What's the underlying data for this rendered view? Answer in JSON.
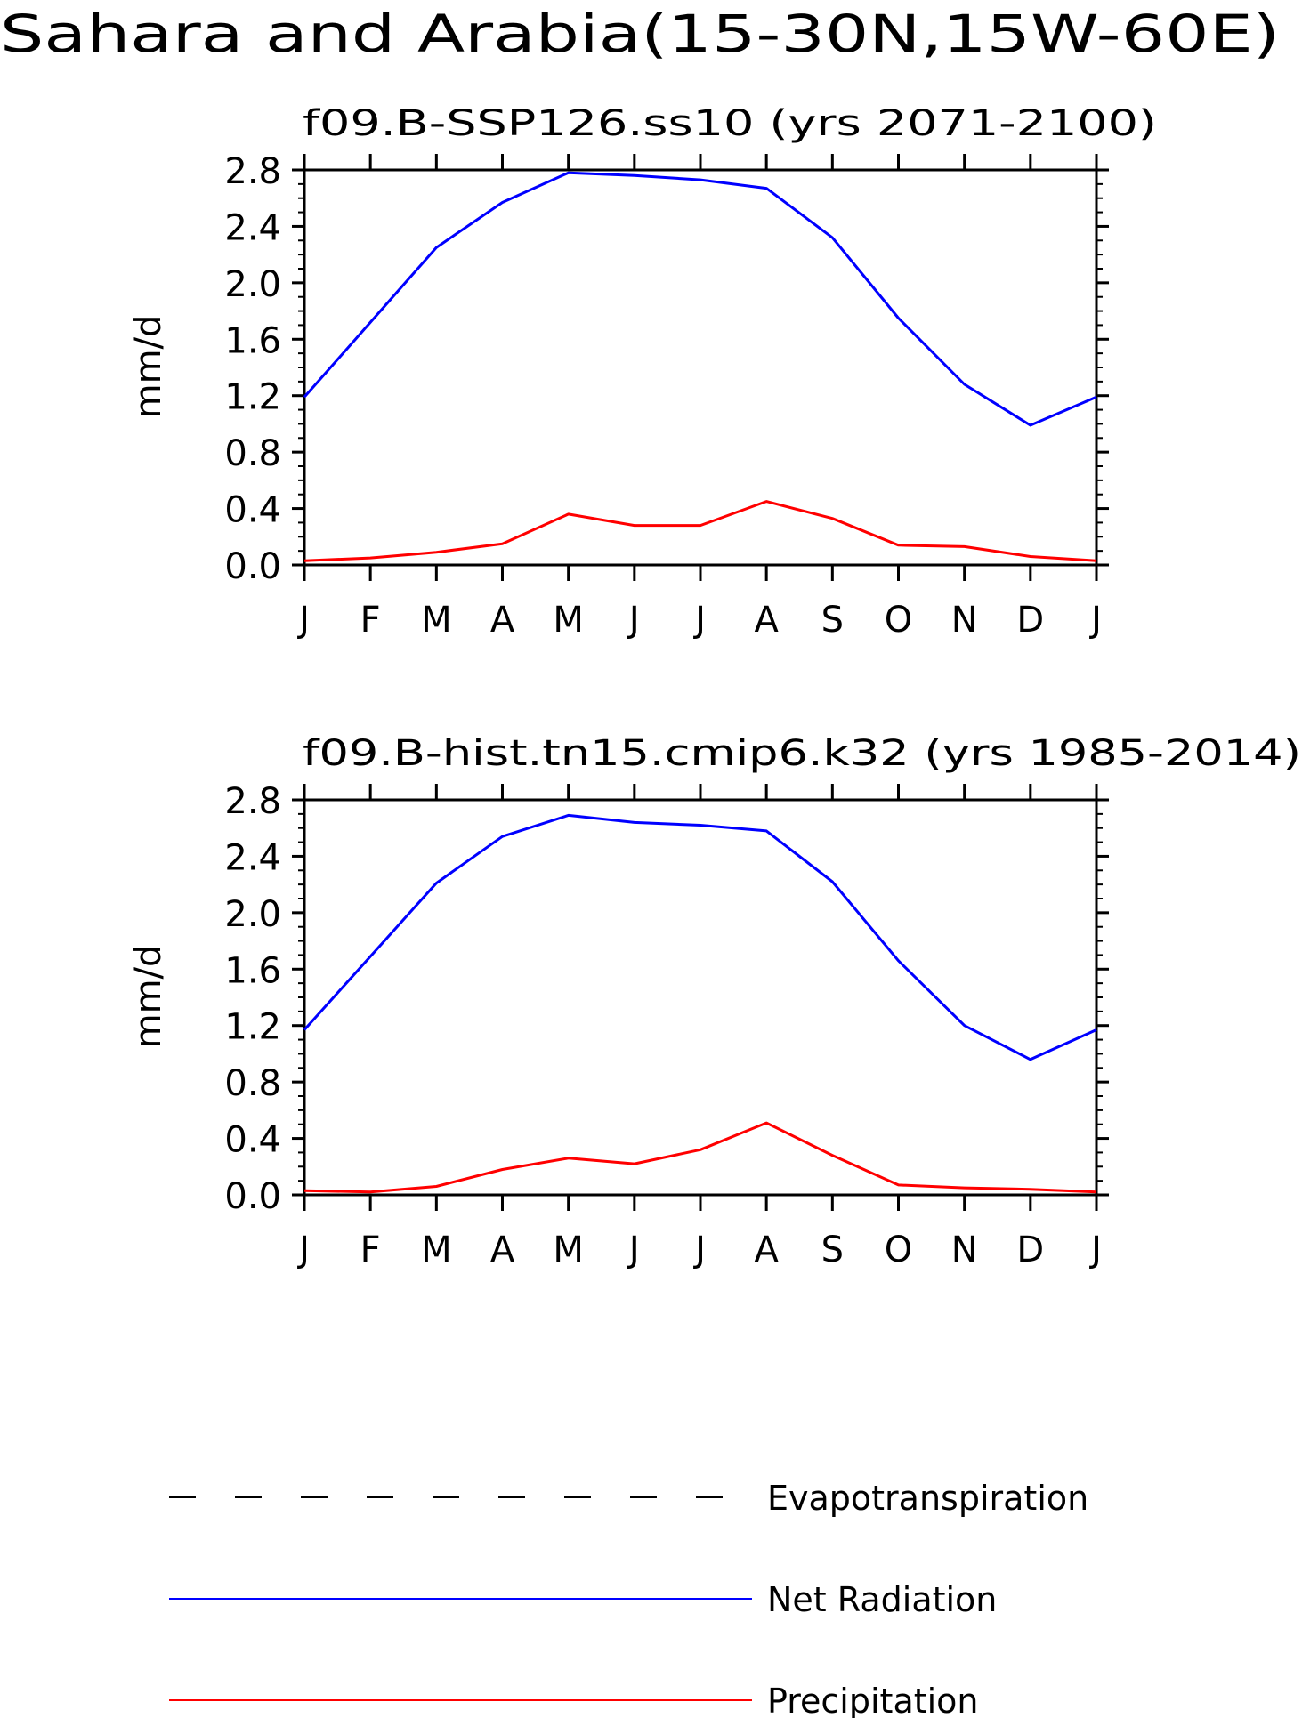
{
  "page": {
    "title": "Sahara and Arabia(15-30N,15W-60E)"
  },
  "legend": {
    "items": [
      {
        "label": "Evapotranspiration",
        "color": "#000000",
        "dash": "dashed"
      },
      {
        "label": "Net Radiation",
        "color": "#0000ff",
        "dash": "solid"
      },
      {
        "label": "Precipitation",
        "color": "#ff0000",
        "dash": "solid"
      }
    ]
  },
  "chart_data": [
    {
      "type": "line",
      "title": "f09.B-SSP126.ss10 (yrs 2071-2100)",
      "xlabel": "",
      "ylabel": "mm/d",
      "categories": [
        "J",
        "F",
        "M",
        "A",
        "M",
        "J",
        "J",
        "A",
        "S",
        "O",
        "N",
        "D",
        "J"
      ],
      "ylim": [
        0.0,
        2.8
      ],
      "yticks": [
        "0.0",
        "0.4",
        "0.8",
        "1.2",
        "1.6",
        "2.0",
        "2.4",
        "2.8"
      ],
      "series": [
        {
          "name": "Net Radiation",
          "color": "#0000ff",
          "values": [
            1.19,
            1.72,
            2.25,
            2.57,
            2.78,
            2.76,
            2.73,
            2.67,
            2.32,
            1.75,
            1.28,
            0.99,
            1.19
          ]
        },
        {
          "name": "Precipitation",
          "color": "#ff0000",
          "values": [
            0.03,
            0.05,
            0.09,
            0.15,
            0.36,
            0.28,
            0.28,
            0.45,
            0.33,
            0.14,
            0.13,
            0.06,
            0.03
          ]
        }
      ]
    },
    {
      "type": "line",
      "title": "f09.B-hist.tn15.cmip6.k32 (yrs 1985-2014)",
      "xlabel": "",
      "ylabel": "mm/d",
      "categories": [
        "J",
        "F",
        "M",
        "A",
        "M",
        "J",
        "J",
        "A",
        "S",
        "O",
        "N",
        "D",
        "J"
      ],
      "ylim": [
        0.0,
        2.8
      ],
      "yticks": [
        "0.0",
        "0.4",
        "0.8",
        "1.2",
        "1.6",
        "2.0",
        "2.4",
        "2.8"
      ],
      "series": [
        {
          "name": "Net Radiation",
          "color": "#0000ff",
          "values": [
            1.17,
            1.69,
            2.21,
            2.54,
            2.69,
            2.64,
            2.62,
            2.58,
            2.22,
            1.66,
            1.2,
            0.96,
            1.17
          ]
        },
        {
          "name": "Precipitation",
          "color": "#ff0000",
          "values": [
            0.03,
            0.02,
            0.06,
            0.18,
            0.26,
            0.22,
            0.32,
            0.51,
            0.28,
            0.07,
            0.05,
            0.04,
            0.02
          ]
        }
      ]
    }
  ]
}
